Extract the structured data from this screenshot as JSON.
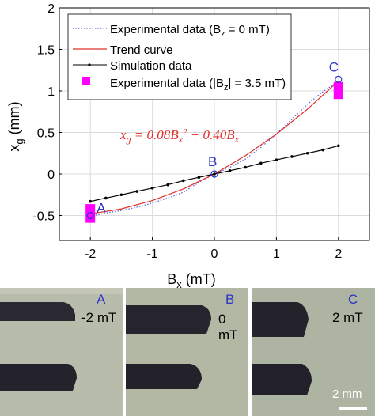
{
  "chart_data": {
    "type": "line",
    "xlabel": "B",
    "xlabel_sub": "x",
    "xlabel_unit": " (mT)",
    "ylabel": "x",
    "ylabel_sub": "g",
    "ylabel_unit": " (mm)",
    "xlim": [
      -2.5,
      2.5
    ],
    "ylim": [
      -0.8,
      2
    ],
    "xticks": [
      -2,
      -1,
      0,
      1,
      2
    ],
    "yticks": [
      -0.5,
      0,
      0.5,
      1,
      1.5,
      2
    ],
    "xtick_labels": [
      "-2",
      "-1",
      "0",
      "1",
      "2"
    ],
    "ytick_labels": [
      "-0.5",
      "0",
      "0.5",
      "1",
      "1.5",
      "2"
    ],
    "grid": true,
    "legend_position": "top",
    "equation": "x_g = 0.08B_x^2 + 0.40B_x",
    "series": [
      {
        "name": "Experimental data (B_z = 0 mT)",
        "style": "dotted",
        "color": "#5a6ad6",
        "x": [
          -2,
          -1.75,
          -1.5,
          -1.25,
          -1,
          -0.75,
          -0.5,
          -0.25,
          0,
          0.25,
          0.5,
          0.75,
          1,
          1.25,
          1.5,
          1.75,
          2
        ],
        "y": [
          -0.51,
          -0.47,
          -0.44,
          -0.4,
          -0.35,
          -0.29,
          -0.22,
          -0.1,
          0.0,
          0.08,
          0.18,
          0.32,
          0.48,
          0.66,
          0.84,
          0.99,
          1.12
        ]
      },
      {
        "name": "Trend curve",
        "style": "solid",
        "color": "#e0302a",
        "x": [
          -2,
          -1.5,
          -1,
          -0.5,
          0,
          0.5,
          1,
          1.5,
          2
        ],
        "y": [
          -0.48,
          -0.42,
          -0.32,
          -0.18,
          0.0,
          0.22,
          0.48,
          0.78,
          1.12
        ]
      },
      {
        "name": "Simulation data",
        "style": "solid-markers",
        "color": "#000000",
        "x": [
          -2,
          -1.75,
          -1.5,
          -1.25,
          -1,
          -0.75,
          -0.5,
          -0.25,
          0,
          0.25,
          0.5,
          0.75,
          1,
          1.25,
          1.5,
          1.75,
          2
        ],
        "y": [
          -0.33,
          -0.29,
          -0.25,
          -0.21,
          -0.17,
          -0.13,
          -0.08,
          -0.04,
          0.0,
          0.04,
          0.08,
          0.13,
          0.17,
          0.21,
          0.25,
          0.29,
          0.34
        ]
      },
      {
        "name": "Experimental data (|B_z| = 3.5 mT)",
        "style": "squares",
        "color": "#ff00ff",
        "x": [
          -2,
          -2,
          2,
          2
        ],
        "y": [
          -0.42,
          -0.53,
          1.05,
          0.96
        ]
      }
    ],
    "points": [
      {
        "label": "A",
        "x": -2,
        "y": -0.5
      },
      {
        "label": "B",
        "x": 0,
        "y": 0.0
      },
      {
        "label": "C",
        "x": 2,
        "y": 1.14
      }
    ]
  },
  "legend": {
    "exp0_a": "Experimental data (B",
    "exp0_sub": "z",
    "exp0_b": " = 0 mT)",
    "trend": "Trend curve",
    "sim": "Simulation data",
    "exp35_a": "Experimental data (|B",
    "exp35_sub": "z",
    "exp35_b": "| = 3.5 mT)"
  },
  "photos": [
    {
      "label": "A",
      "field": "-2 mT"
    },
    {
      "label": "B",
      "field": "0 mT"
    },
    {
      "label": "C",
      "field": "2 mT"
    }
  ],
  "scale_bar": "2 mm"
}
